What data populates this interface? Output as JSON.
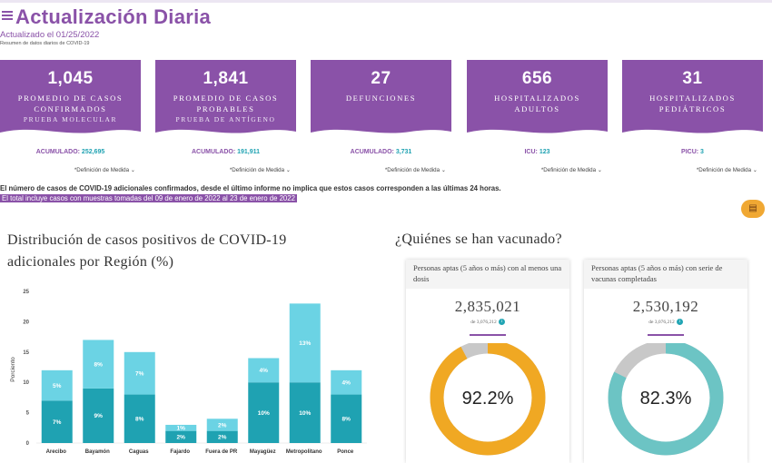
{
  "header": {
    "title": "Actualización Diaria",
    "updated": "Actualizado el 01/25/2022",
    "subtitle": "Resumen de datos diarios de COVID-19"
  },
  "cards": [
    {
      "value": "1,045",
      "line1": "PROMEDIO DE CASOS",
      "line2": "CONFIRMADOS",
      "line3": "PRUEBA MOLECULAR",
      "acc_label": "ACUMULADO:",
      "acc_value": "252,695",
      "def": "*Definición de Medida"
    },
    {
      "value": "1,841",
      "line1": "PROMEDIO DE CASOS",
      "line2": "PROBABLES",
      "line3": "PRUEBA DE ANTÍGENO",
      "acc_label": "ACUMULADO:",
      "acc_value": "191,911",
      "def": "*Definición de Medida"
    },
    {
      "value": "27",
      "line1": "DEFUNCIONES",
      "line2": "",
      "line3": "",
      "acc_label": "ACUMULADO:",
      "acc_value": "3,731",
      "def": "*Definición de Medida"
    },
    {
      "value": "656",
      "line1": "HOSPITALIZADOS",
      "line2": "ADULTOS",
      "line3": "",
      "acc_label": "ICU:",
      "acc_value": "123",
      "def": "*Definición de Medida"
    },
    {
      "value": "31",
      "line1": "HOSPITALIZADOS",
      "line2": "PEDIÁTRICOS",
      "line3": "",
      "acc_label": "PICU:",
      "acc_value": "3",
      "def": "*Definición de Medida"
    }
  ],
  "notes": {
    "note1": "El número de casos de COVID-19 adicionales confirmados, desde el último informe no implica que estos casos corresponden a las últimas 24 horas.",
    "note2": "El total incluye casos con muestras tomadas del 09 de enero de 2022 al 23 de enero de 2022"
  },
  "regional_chart": {
    "title_line1": "Distribución de casos positivos de COVID-19",
    "title_line2": "adicionales por Región (%)"
  },
  "chart_data": {
    "type": "bar",
    "stacked": true,
    "categories": [
      "Arecibo",
      "Bayamón",
      "Caguas",
      "Fajardo",
      "Fuera de PR",
      "Mayagüez",
      "Metropolitano",
      "Ponce"
    ],
    "series": [
      {
        "values": [
          7,
          9,
          8,
          2,
          2,
          10,
          10,
          8
        ],
        "labels": [
          "7%",
          "9%",
          "8%",
          "2%",
          "2%",
          "10%",
          "10%",
          "8%"
        ],
        "color": "#1fa2b2"
      },
      {
        "values": [
          5,
          8,
          7,
          1,
          2,
          4,
          13,
          4
        ],
        "labels": [
          "5%",
          "8%",
          "7%",
          "1%",
          "2%",
          "4%",
          "13%",
          "4%"
        ],
        "color": "#6bd3e4"
      }
    ],
    "ylabel": "Porciento",
    "yticks": [
      "0",
      "5",
      "10",
      "15",
      "20",
      "25"
    ],
    "ylim": [
      0,
      25
    ],
    "grid": false
  },
  "vaccination": {
    "title": "¿Quiénes se han vacunado?",
    "cards": [
      {
        "header": "Personas aptas (5 años o más) con al menos una dosis",
        "value": "2,835,021",
        "of": "de 3,076,212",
        "percent": 92.2,
        "percent_label": "92.2%",
        "color": "#f0a823",
        "rest_color": "#c8c8c8"
      },
      {
        "header": "Personas aptas (5 años o más) con serie de vacunas completadas",
        "value": "2,530,192",
        "of": "de 3,076,212",
        "percent": 82.3,
        "percent_label": "82.3%",
        "color": "#6cc4c4",
        "rest_color": "#c8c8c8"
      }
    ]
  }
}
